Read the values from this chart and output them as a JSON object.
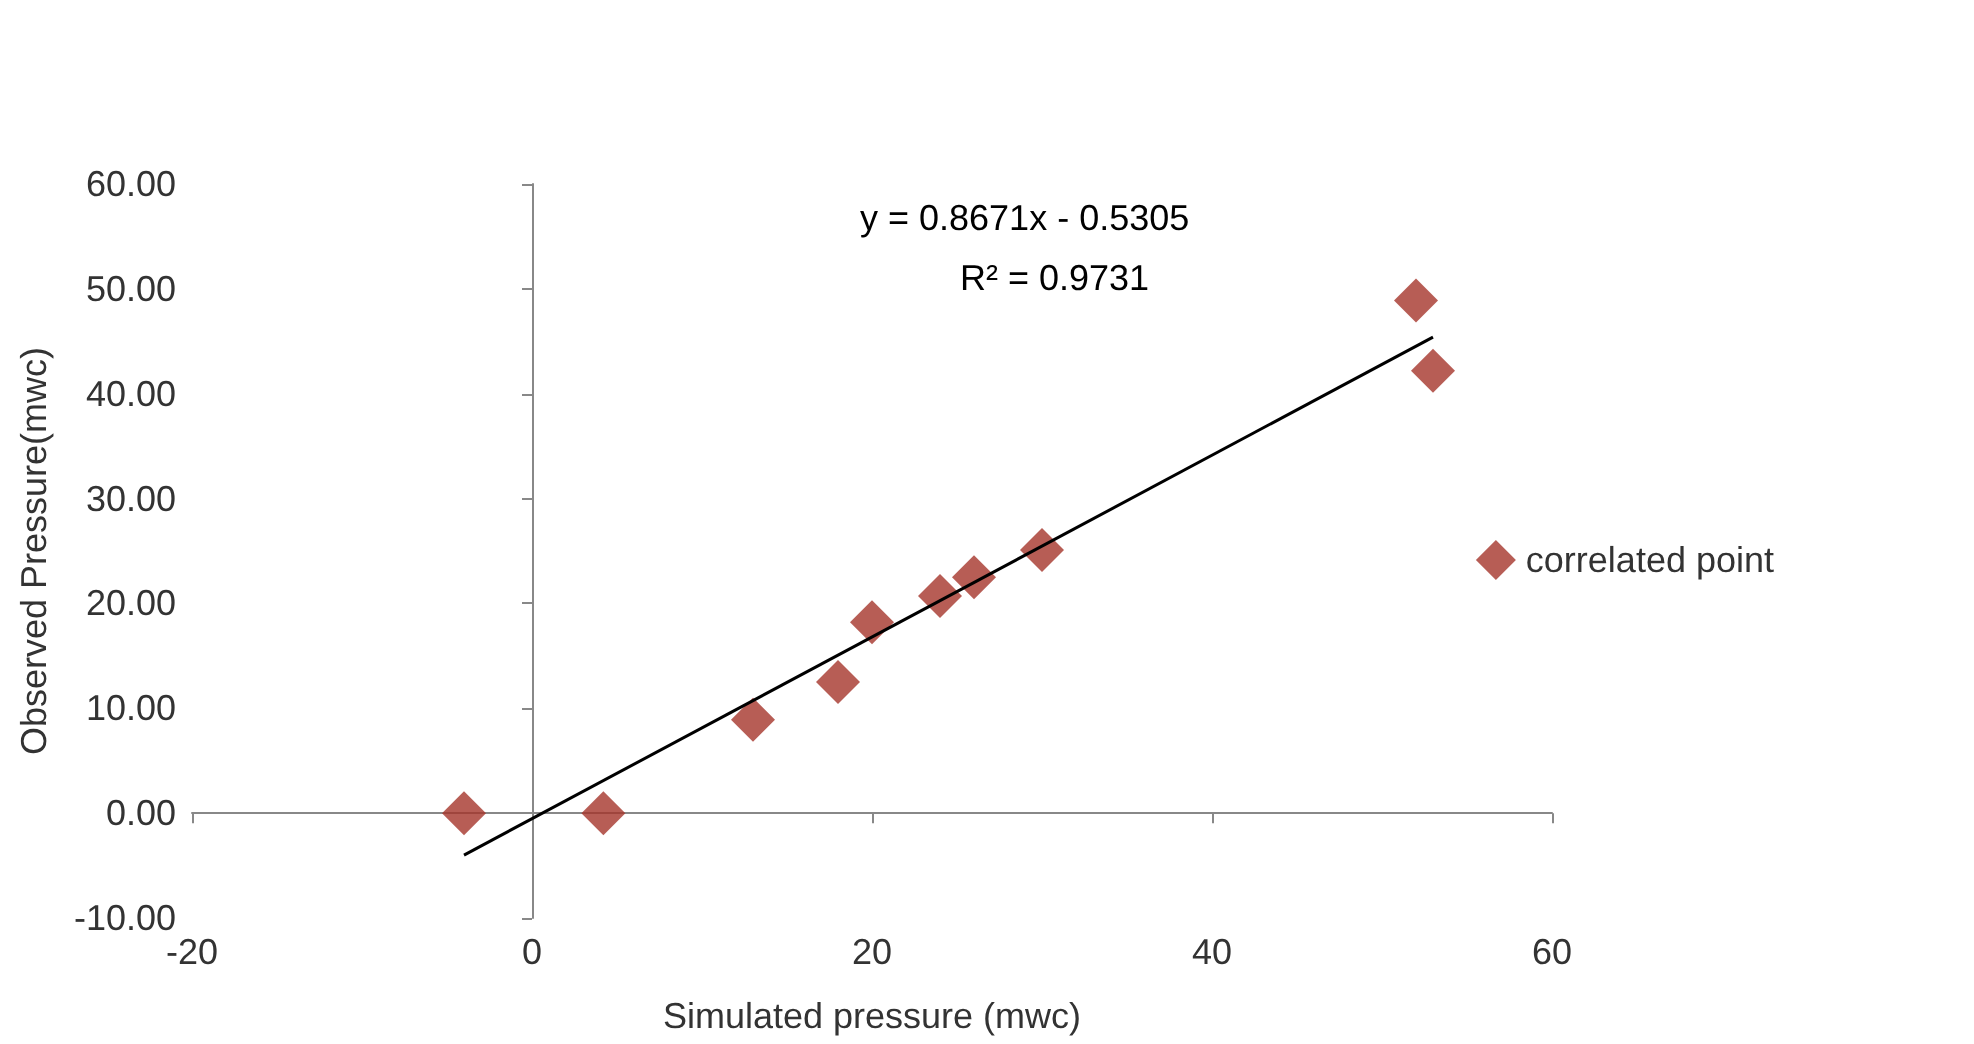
{
  "chart_data": {
    "type": "scatter",
    "xlabel": "Simulated pressure (mwc)",
    "ylabel": "Observed Pressure(mwc)",
    "annotations": [
      "y = 0.8671x - 0.5305",
      "R² = 0.9731"
    ],
    "xlim": [
      -20,
      60
    ],
    "xticks": [
      -20,
      0,
      20,
      40,
      60
    ],
    "ylim": [
      -10,
      60
    ],
    "yticks": [
      {
        "value": -10,
        "label": "-10.00"
      },
      {
        "value": 0,
        "label": "0.00"
      },
      {
        "value": 10,
        "label": "10.00"
      },
      {
        "value": 20,
        "label": "20.00"
      },
      {
        "value": 30,
        "label": "30.00"
      },
      {
        "value": 40,
        "label": "40.00"
      },
      {
        "value": 50,
        "label": "50.00"
      },
      {
        "value": 60,
        "label": "60.00"
      }
    ],
    "legend": "right",
    "marker": "diamond",
    "series": [
      {
        "name": "correlated point",
        "color": "#a5342b",
        "x": [
          -4,
          4.2,
          13,
          18,
          20,
          24,
          26,
          30,
          52,
          53
        ],
        "values": [
          0,
          0,
          8.9,
          12.5,
          18.2,
          20.7,
          22.5,
          25.1,
          48.9,
          42.2
        ]
      },
      {
        "type": "line",
        "color": "#000000",
        "marker": "none",
        "line_style": "solid",
        "x": [
          -4,
          53
        ],
        "values": [
          -4,
          45.4
        ]
      }
    ]
  }
}
